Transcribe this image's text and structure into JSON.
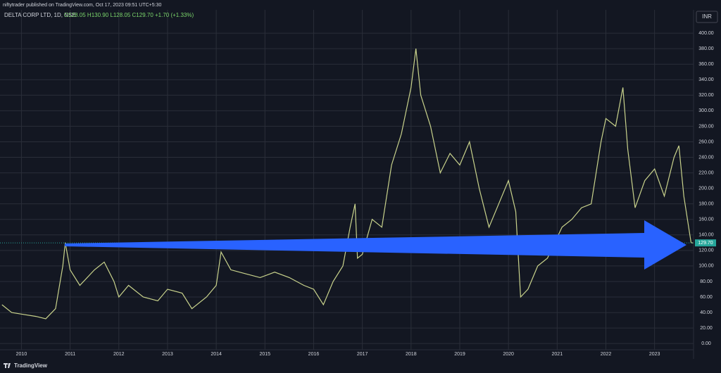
{
  "header": "niftytrader published on TradingView.com, Oct 17, 2023 09:51 UTC+5:30",
  "footer": "TradingView",
  "chart_data": {
    "type": "line",
    "title": "DELTA CORP LTD, 1D, NSE",
    "ohlc_text": "O128.05 H130.90 L128.05 C129.70 +1.70 (+1.33%)",
    "currency": "INR",
    "grid": true,
    "color": "#c9d38c",
    "x": [
      2009.6,
      2009.8,
      2010.0,
      2010.3,
      2010.5,
      2010.7,
      2010.85,
      2010.9,
      2011.0,
      2011.2,
      2011.5,
      2011.7,
      2011.9,
      2012.0,
      2012.2,
      2012.5,
      2012.8,
      2013.0,
      2013.3,
      2013.5,
      2013.8,
      2014.0,
      2014.1,
      2014.3,
      2014.6,
      2014.9,
      2015.2,
      2015.5,
      2015.8,
      2016.0,
      2016.2,
      2016.4,
      2016.6,
      2016.75,
      2016.85,
      2016.9,
      2017.0,
      2017.2,
      2017.4,
      2017.6,
      2017.8,
      2018.0,
      2018.1,
      2018.2,
      2018.4,
      2018.6,
      2018.8,
      2019.0,
      2019.2,
      2019.4,
      2019.6,
      2019.8,
      2020.0,
      2020.15,
      2020.25,
      2020.4,
      2020.6,
      2020.8,
      2020.95,
      2021.1,
      2021.3,
      2021.5,
      2021.7,
      2021.9,
      2022.0,
      2022.2,
      2022.35,
      2022.45,
      2022.6,
      2022.8,
      2023.0,
      2023.2,
      2023.4,
      2023.5,
      2023.6,
      2023.75,
      2023.79
    ],
    "values": [
      50,
      40,
      38,
      35,
      32,
      45,
      100,
      130,
      95,
      75,
      95,
      105,
      80,
      60,
      75,
      60,
      55,
      70,
      65,
      45,
      60,
      75,
      118,
      95,
      90,
      85,
      92,
      85,
      75,
      70,
      50,
      80,
      100,
      150,
      180,
      110,
      115,
      160,
      150,
      230,
      270,
      330,
      380,
      320,
      280,
      220,
      245,
      230,
      260,
      200,
      150,
      180,
      210,
      170,
      60,
      70,
      100,
      110,
      130,
      150,
      160,
      175,
      180,
      260,
      290,
      280,
      330,
      250,
      175,
      210,
      225,
      190,
      240,
      255,
      190,
      130,
      129.7
    ],
    "price_label": {
      "value": 129.7,
      "label": "129.70"
    },
    "xlim": [
      2009.56,
      2023.8
    ],
    "ylim": [
      -8,
      430
    ],
    "xticks": [
      2010,
      2011,
      2012,
      2013,
      2014,
      2015,
      2016,
      2017,
      2018,
      2019,
      2020,
      2021,
      2022,
      2023
    ],
    "yticks": [
      {
        "value": 0,
        "label": "0.00"
      },
      {
        "value": 20,
        "label": "20.00"
      },
      {
        "value": 40,
        "label": "40.00"
      },
      {
        "value": 60,
        "label": "60.00"
      },
      {
        "value": 80,
        "label": "80.00"
      },
      {
        "value": 100,
        "label": "100.00"
      },
      {
        "value": 120,
        "label": "120.00"
      },
      {
        "value": 140,
        "label": "140.00"
      },
      {
        "value": 160,
        "label": "160.00"
      },
      {
        "value": 180,
        "label": "180.00"
      },
      {
        "value": 200,
        "label": "200.00"
      },
      {
        "value": 220,
        "label": "220.00"
      },
      {
        "value": 240,
        "label": "240.00"
      },
      {
        "value": 260,
        "label": "260.00"
      },
      {
        "value": 280,
        "label": "280.00"
      },
      {
        "value": 300,
        "label": "300.00"
      },
      {
        "value": 320,
        "label": "320.00"
      },
      {
        "value": 340,
        "label": "340.00"
      },
      {
        "value": 360,
        "label": "360.00"
      },
      {
        "value": 380,
        "label": "380.00"
      },
      {
        "value": 400,
        "label": "400.00"
      }
    ]
  }
}
